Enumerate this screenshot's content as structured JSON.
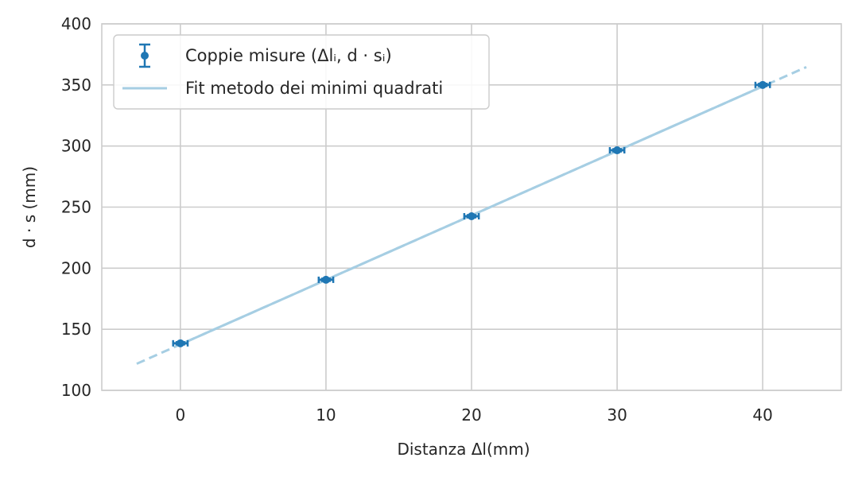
{
  "chart_data": {
    "type": "scatter",
    "xlabel": "Distanza Δl(mm)",
    "ylabel": "d · s (mm)",
    "xlim": [
      -5.4,
      45.4
    ],
    "ylim": [
      100,
      400
    ],
    "xticks": [
      0,
      10,
      20,
      30,
      40
    ],
    "yticks": [
      100,
      150,
      200,
      250,
      300,
      350,
      400
    ],
    "grid": true,
    "legend_position": "top-left",
    "series": [
      {
        "name": "Coppie misure (Δlᵢ, d · sᵢ)",
        "kind": "errorbar",
        "color": "#1f77b4",
        "x": [
          0,
          10,
          20,
          30,
          40
        ],
        "y": [
          138.5,
          190.5,
          242.5,
          296.5,
          350.0
        ],
        "xerr": [
          0.5,
          0.5,
          0.5,
          0.5,
          0.5
        ],
        "yerr": [
          1.0,
          1.0,
          1.0,
          1.0,
          1.0
        ]
      },
      {
        "name": "Fit metodo dei minimi quadrati",
        "kind": "line",
        "color": "#a6cee3",
        "slope": 5.28,
        "intercept": 137.6,
        "solid_x": [
          0,
          40
        ],
        "dashed_x": [
          -3,
          43
        ]
      }
    ]
  }
}
